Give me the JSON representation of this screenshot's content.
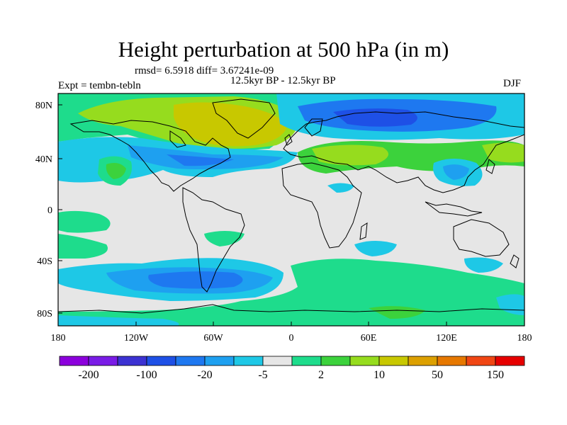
{
  "title": "Height perturbation at 500 hPa (in m)",
  "stats_line": "rmsd= 6.5918  diff= 3.67241e-09",
  "experiment": "Expt = tembn-tebln",
  "period": "12.5kyr BP - 12.5kyr BP",
  "season": "DJF",
  "lat_labels": [
    "80N",
    "40N",
    "0",
    "40S",
    "80S"
  ],
  "lon_labels": [
    "180",
    "120W",
    "60W",
    "0",
    "60E",
    "120E",
    "180"
  ],
  "colors": {
    "background": "#ffffff",
    "map_neutral": "#e6e6e6",
    "coast": "#000000"
  },
  "colorbar": {
    "colors": [
      "#8c00dc",
      "#7a1ce6",
      "#3c32d2",
      "#1e50e6",
      "#1e78f0",
      "#1ea0f0",
      "#1ec8e6",
      "#e6e6e6",
      "#1edc8c",
      "#3cd23c",
      "#96dc1e",
      "#c8c800",
      "#dca000",
      "#e67800",
      "#f04614",
      "#e60000"
    ],
    "labels": [
      "-200",
      "-100",
      "-20",
      "-5",
      "2",
      "10",
      "50",
      "150"
    ]
  },
  "map_data": {
    "type": "filled_contour",
    "field": "500 hPa geopotential height perturbation",
    "units": "m",
    "lon_range": [
      -180,
      180
    ],
    "lat_range": [
      -90,
      90
    ],
    "regions": [
      {
        "name": "north-pacific-arctic-positive",
        "level": "2 to 10",
        "color": "#1edc8c",
        "lon": [
          -180,
          -90
        ],
        "lat": [
          60,
          90
        ]
      },
      {
        "name": "north-america-arctic-positive",
        "level": "10 to 50",
        "color": "#96dc1e",
        "lon": [
          -140,
          -10
        ],
        "lat": [
          50,
          85
        ]
      },
      {
        "name": "greenland-maximum",
        "level": "50 to 150",
        "color": "#c8c800",
        "lon": [
          -120,
          -30
        ],
        "lat": [
          55,
          80
        ]
      },
      {
        "name": "eurasia-arctic-negative",
        "level": "-20 to -5",
        "color": "#1e78f0",
        "lon": [
          -10,
          180
        ],
        "lat": [
          60,
          85
        ]
      },
      {
        "name": "north-atlantic-negative",
        "level": "-20 to -5",
        "color": "#1e78f0",
        "lon": [
          -120,
          -20
        ],
        "lat": [
          30,
          55
        ]
      },
      {
        "name": "north-pacific-negative",
        "level": "-5 to 2",
        "color": "#1ec8e6",
        "lon": [
          -180,
          -130
        ],
        "lat": [
          25,
          55
        ]
      },
      {
        "name": "mediterranean-positive",
        "level": "10 to 50",
        "color": "#96dc1e",
        "lon": [
          0,
          90
        ],
        "lat": [
          20,
          55
        ]
      },
      {
        "name": "east-asia-negative",
        "level": "-5 to 2",
        "color": "#1ec8e6",
        "lon": [
          100,
          160
        ],
        "lat": [
          20,
          50
        ]
      },
      {
        "name": "southern-ocean-atlantic-negative",
        "level": "-20 to -5",
        "color": "#1e78f0",
        "lon": [
          -100,
          -10
        ],
        "lat": [
          -75,
          -40
        ]
      },
      {
        "name": "southern-ocean-indian-positive",
        "level": "2 to 10",
        "color": "#1edc8c",
        "lon": [
          20,
          180
        ],
        "lat": [
          -80,
          -35
        ]
      },
      {
        "name": "south-pacific-positive",
        "level": "2 to 10",
        "color": "#1edc8c",
        "lon": [
          -180,
          -100
        ],
        "lat": [
          -50,
          -25
        ]
      }
    ]
  }
}
